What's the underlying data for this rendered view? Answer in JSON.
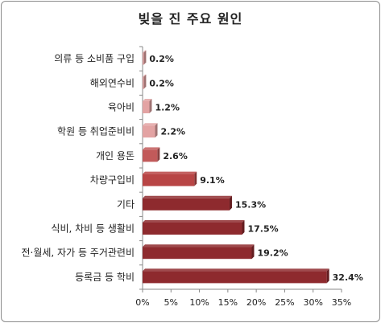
{
  "chart_data": {
    "type": "bar",
    "orientation": "horizontal",
    "title": "빚을 진 주요 원인",
    "categories": [
      "의류 등 소비품 구입",
      "해외연수비",
      "육아비",
      "학원 등 취업준비비",
      "개인 용돈",
      "차량구입비",
      "기타",
      "식비, 차비 등 생활비",
      "전·월세, 자가 등 주거관련비",
      "등록금 등 학비"
    ],
    "values": [
      0.2,
      0.2,
      1.2,
      2.2,
      2.6,
      9.1,
      15.3,
      17.5,
      19.2,
      32.4
    ],
    "data_labels": [
      "0.2%",
      "0.2%",
      "1.2%",
      "2.2%",
      "2.6%",
      "9.1%",
      "15.3%",
      "17.5%",
      "19.2%",
      "32.4%"
    ],
    "xlim": [
      0,
      35
    ],
    "x_ticks": [
      "0%",
      "5%",
      "10%",
      "15%",
      "20%",
      "25%",
      "30%",
      "35%"
    ],
    "grid": false,
    "legend": "none",
    "colors": {
      "light": "#e3a3a3",
      "mid": "#c25a5a",
      "dark": "#8e2a2e",
      "text": "#222222",
      "axis": "#888888"
    }
  }
}
